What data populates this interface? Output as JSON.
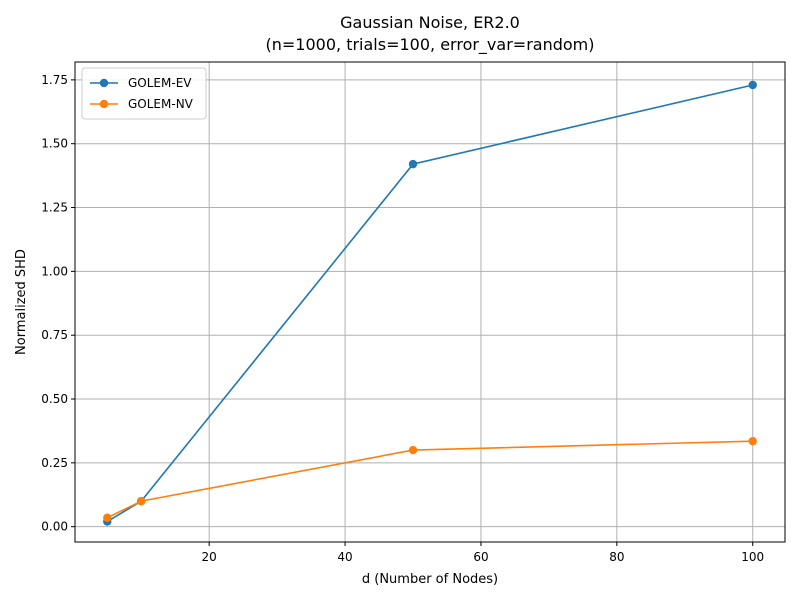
{
  "chart_data": {
    "type": "line",
    "title": "Gaussian Noise, ER2.0",
    "subtitle": "(n=1000, trials=100, error_var=random)",
    "xlabel": "d (Number of Nodes)",
    "ylabel": "Normalized SHD",
    "x": [
      5,
      10,
      50,
      100
    ],
    "xlim": [
      0.25,
      104.75
    ],
    "ylim": [
      -0.06,
      1.82
    ],
    "xticks": [
      20,
      40,
      60,
      80,
      100
    ],
    "xtick_labels": [
      "20",
      "40",
      "60",
      "80",
      "100"
    ],
    "yticks": [
      0.0,
      0.25,
      0.5,
      0.75,
      1.0,
      1.25,
      1.5,
      1.75
    ],
    "ytick_labels": [
      "0.00",
      "0.25",
      "0.50",
      "0.75",
      "1.00",
      "1.25",
      "1.50",
      "1.75"
    ],
    "grid": true,
    "legend_position": "top-left",
    "series": [
      {
        "name": "GOLEM-EV",
        "color": "#1f77b4",
        "values": [
          0.02,
          0.1,
          1.42,
          1.73
        ]
      },
      {
        "name": "GOLEM-NV",
        "color": "#ff7f0e",
        "values": [
          0.035,
          0.1,
          0.3,
          0.335
        ]
      }
    ]
  }
}
